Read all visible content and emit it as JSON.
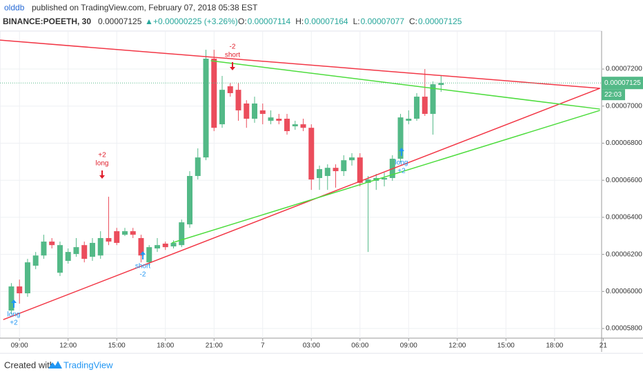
{
  "header": {
    "author": "olddb",
    "published": "published on TradingView.com, February 07, 2018 05:38 EST",
    "symbol": "BINANCE:POEETH, 30",
    "price": "0.00007125",
    "change": "+0.00000225 (+3.26%)",
    "ohlc": [
      {
        "key": "O:",
        "value": "0.00007114"
      },
      {
        "key": "H:",
        "value": "0.00007164"
      },
      {
        "key": "L:",
        "value": "0.00007077"
      },
      {
        "key": "C:",
        "value": "0.00007125"
      }
    ]
  },
  "chart_data": {
    "type": "candlestick",
    "up_color": "#53b987",
    "down_color": "#eb4d5c",
    "grid": true,
    "x": [
      8.5,
      9,
      9.5,
      10,
      10.5,
      11,
      11.5,
      12,
      12.5,
      13,
      13.5,
      14,
      14.5,
      15,
      15.5,
      16,
      16.5,
      17,
      17.5,
      18,
      18.5,
      19,
      19.5,
      20,
      20.5,
      21,
      21.5,
      22,
      22.5,
      23,
      23.5,
      24,
      24.5,
      25,
      25.5,
      26,
      26.5,
      27,
      27.5,
      28,
      28.5,
      29,
      29.5,
      30,
      30.5,
      31,
      31.5,
      32,
      32.5,
      33,
      33.5,
      34,
      34.5,
      35
    ],
    "open": [
      5.897e-05,
      6.027e-05,
      5.99e-05,
      6.139e-05,
      6.194e-05,
      6.269e-05,
      6.101e-05,
      6.165e-05,
      6.202e-05,
      6.25e-05,
      6.187e-05,
      6.194e-05,
      6.288e-05,
      6.325e-05,
      6.306e-05,
      6.325e-05,
      6.288e-05,
      6.157e-05,
      6.232e-05,
      6.258e-05,
      6.243e-05,
      6.25e-05,
      6.362e-05,
      6.623e-05,
      6.723e-05,
      7.256e-05,
      6.902e-05,
      7.107e-05,
      7.088e-05,
      7.014e-05,
      6.932e-05,
      6.977e-05,
      6.921e-05,
      6.932e-05,
      6.932e-05,
      6.891e-05,
      6.902e-05,
      6.883e-05,
      6.612e-05,
      6.623e-05,
      6.667e-05,
      6.649e-05,
      6.708e-05,
      6.723e-05,
      6.586e-05,
      6.597e-05,
      6.604e-05,
      6.612e-05,
      6.716e-05,
      6.921e-05,
      6.932e-05,
      7.051e-05,
      6.958e-05,
      7.114e-05
    ],
    "high": [
      6.045e-05,
      6.064e-05,
      6.176e-05,
      6.213e-05,
      6.306e-05,
      6.288e-05,
      6.269e-05,
      6.232e-05,
      6.288e-05,
      6.269e-05,
      6.288e-05,
      6.325e-05,
      6.511e-05,
      6.343e-05,
      6.343e-05,
      6.343e-05,
      6.306e-05,
      6.25e-05,
      6.288e-05,
      6.269e-05,
      6.276e-05,
      6.388e-05,
      6.649e-05,
      6.772e-05,
      7.304e-05,
      7.304e-05,
      7.163e-05,
      7.126e-05,
      7.126e-05,
      7.032e-05,
      7.051e-05,
      7.014e-05,
      6.977e-05,
      6.958e-05,
      6.958e-05,
      6.921e-05,
      6.932e-05,
      6.902e-05,
      6.679e-05,
      6.686e-05,
      6.686e-05,
      6.735e-05,
      6.746e-05,
      6.746e-05,
      6.623e-05,
      6.634e-05,
      6.641e-05,
      6.735e-05,
      6.958e-05,
      6.977e-05,
      7.07e-05,
      7.2e-05,
      7.133e-05,
      7.164e-05
    ],
    "low": [
      5.878e-05,
      5.934e-05,
      5.971e-05,
      6.12e-05,
      6.176e-05,
      6.232e-05,
      6.083e-05,
      6.15e-05,
      6.187e-05,
      6.157e-05,
      6.165e-05,
      6.176e-05,
      6.25e-05,
      6.25e-05,
      6.299e-05,
      6.288e-05,
      6.157e-05,
      6.139e-05,
      6.213e-05,
      6.224e-05,
      6.232e-05,
      6.239e-05,
      6.343e-05,
      6.604e-05,
      6.708e-05,
      6.865e-05,
      6.883e-05,
      7.051e-05,
      6.921e-05,
      6.883e-05,
      6.91e-05,
      6.902e-05,
      6.902e-05,
      6.902e-05,
      6.846e-05,
      6.872e-05,
      6.865e-05,
      6.548e-05,
      6.548e-05,
      6.548e-05,
      6.56e-05,
      6.623e-05,
      6.679e-05,
      6.567e-05,
      6.213e-05,
      6.548e-05,
      6.567e-05,
      6.597e-05,
      6.697e-05,
      6.902e-05,
      6.921e-05,
      6.947e-05,
      6.846e-05,
      7.077e-05
    ],
    "close": [
      6.027e-05,
      5.99e-05,
      6.157e-05,
      6.194e-05,
      6.269e-05,
      6.25e-05,
      6.25e-05,
      6.213e-05,
      6.239e-05,
      6.176e-05,
      6.262e-05,
      6.288e-05,
      6.269e-05,
      6.262e-05,
      6.325e-05,
      6.306e-05,
      6.194e-05,
      6.239e-05,
      6.25e-05,
      6.239e-05,
      6.262e-05,
      6.373e-05,
      6.623e-05,
      6.723e-05,
      7.256e-05,
      6.883e-05,
      7.088e-05,
      7.07e-05,
      6.977e-05,
      6.932e-05,
      7.014e-05,
      6.958e-05,
      6.939e-05,
      6.921e-05,
      6.865e-05,
      6.902e-05,
      6.883e-05,
      6.604e-05,
      6.66e-05,
      6.667e-05,
      6.649e-05,
      6.708e-05,
      6.723e-05,
      6.586e-05,
      6.604e-05,
      6.612e-05,
      6.612e-05,
      6.716e-05,
      6.939e-05,
      6.932e-05,
      7.051e-05,
      6.958e-05,
      7.118e-05,
      7.125e-05
    ],
    "xlim": [
      7.8,
      44.9
    ],
    "xticks": [
      {
        "value": 9,
        "label": "09:00"
      },
      {
        "value": 12,
        "label": "12:00"
      },
      {
        "value": 15,
        "label": "15:00"
      },
      {
        "value": 18,
        "label": "18:00"
      },
      {
        "value": 21,
        "label": "21:00"
      },
      {
        "value": 24,
        "label": "7"
      },
      {
        "value": 27,
        "label": "03:00"
      },
      {
        "value": 30,
        "label": "06:00"
      },
      {
        "value": 33,
        "label": "09:00"
      },
      {
        "value": 36,
        "label": "12:00"
      },
      {
        "value": 39,
        "label": "15:00"
      },
      {
        "value": 42,
        "label": "18:00"
      },
      {
        "value": 45,
        "label": "21"
      }
    ],
    "ylim": [
      5.748e-05,
      7.405e-05
    ],
    "yticks": [
      {
        "value": 5.8e-05,
        "label": "0.00005800"
      },
      {
        "value": 6e-05,
        "label": "0.00006000"
      },
      {
        "value": 6.2e-05,
        "label": "0.00006200"
      },
      {
        "value": 6.4e-05,
        "label": "0.00006400"
      },
      {
        "value": 6.6e-05,
        "label": "0.00006600"
      },
      {
        "value": 6.8e-05,
        "label": "0.00006800"
      },
      {
        "value": 7e-05,
        "label": "0.00007000"
      },
      {
        "value": 7.2e-05,
        "label": "0.00007200"
      }
    ],
    "trendlines": [
      {
        "color": "#f23645",
        "x": [
          7.8,
          44.8
        ],
        "values": [
          7.356e-05,
          7.096e-05
        ]
      },
      {
        "color": "#f23645",
        "x": [
          8,
          44.8
        ],
        "values": [
          5.848e-05,
          7.096e-05
        ]
      },
      {
        "color": "#4cdc3c",
        "x": [
          20.8,
          44.8
        ],
        "values": [
          7.245e-05,
          6.984e-05
        ]
      },
      {
        "color": "#4cdc3c",
        "x": [
          18.4,
          44.8
        ],
        "values": [
          6.262e-05,
          6.977e-05
        ]
      }
    ],
    "last_price_label": "0.00007125",
    "countdown": "22:03",
    "annotations": [
      {
        "text": "long",
        "amount": "+2"
      },
      {
        "text": "short",
        "amount": "-2"
      },
      {
        "text": "long",
        "amount": "+2"
      },
      {
        "text": "short",
        "amount": "-2"
      },
      {
        "text": "long",
        "amount": "+2"
      }
    ]
  },
  "footer": {
    "created": "Created with",
    "brand": "TradingView"
  }
}
